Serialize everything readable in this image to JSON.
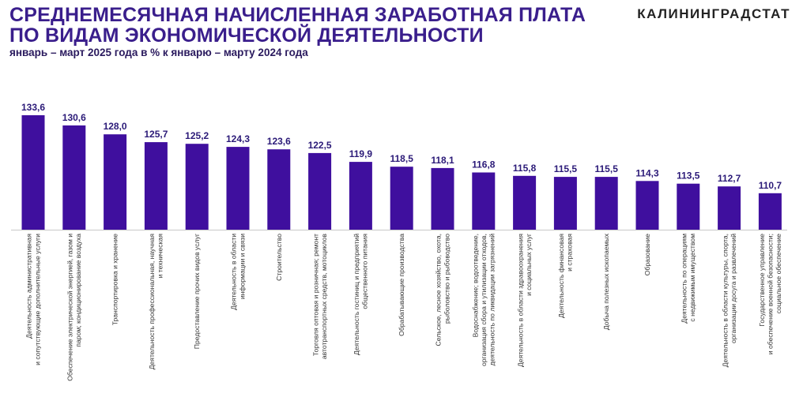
{
  "header": {
    "title": "СРЕДНЕМЕСЯЧНАЯ НАЧИСЛЕННАЯ ЗАРАБОТНАЯ ПЛАТА ПО ВИДАМ ЭКОНОМИЧЕСКОЙ ДЕЯТЕЛЬНОСТИ",
    "subtitle": "январь – март 2025 года в % к январю – марту 2024 года",
    "brand": "КАЛИНИНГРАДСТАТ"
  },
  "colors": {
    "bar": "#3f0f9e",
    "title": "#3a1e8c",
    "value_label": "#2b1a78"
  },
  "chart_data": {
    "type": "bar",
    "title": "СРЕДНЕМЕСЯЧНАЯ НАЧИСЛЕННАЯ ЗАРАБОТНАЯ ПЛАТА ПО ВИДАМ ЭКОНОМИЧЕСКОЙ ДЕЯТЕЛЬНОСТИ",
    "subtitle": "январь – март 2025 года в % к январю – марту 2024 года",
    "xlabel": "",
    "ylabel": "",
    "ylim": [
      100,
      134
    ],
    "grid": false,
    "categories": [
      [
        "Деятельность административная",
        "и сопутствующие дополнительные услуги"
      ],
      [
        "Обеспечение электрической энергией, газом и",
        "паром; кондиционирование воздуха"
      ],
      [
        "Транспортировка и хранение"
      ],
      [
        "Деятельность профессиональная, научная",
        "и техническая"
      ],
      [
        "Предоставление прочих видов услуг"
      ],
      [
        "Деятельность в области",
        "информации и связи"
      ],
      [
        "Строительство"
      ],
      [
        "Торговля оптовая и розничная; ремонт",
        "автотранспортных средств, мотоциклов"
      ],
      [
        "Деятельность гостиниц и предприятий",
        "общественного питания"
      ],
      [
        "Обрабатывающие производства"
      ],
      [
        "Сельское, лесное хозяйство, охота,",
        "рыболовство и рыбоводство"
      ],
      [
        "Водоснабжение; водоотведение,",
        "организация сбора и утилизации отходов,",
        "деятельность по ликвидации загрязнений"
      ],
      [
        "Деятельность  в области здравоохранения",
        "и социальных услуг"
      ],
      [
        "Деятельность финансовая",
        "и страховая"
      ],
      [
        "Добыча полезных ископаемых"
      ],
      [
        "Образование"
      ],
      [
        "Деятельность по операциям",
        "с недвижимым имуществом"
      ],
      [
        "Деятельность в области культуры, спорта,",
        "организации досуга и развлечений"
      ],
      [
        "Государственное управление",
        "и обеспечение военной безопасности;",
        "социальное обеспечение"
      ]
    ],
    "values": [
      133.6,
      130.6,
      128.0,
      125.7,
      125.2,
      124.3,
      123.6,
      122.5,
      119.9,
      118.5,
      118.1,
      116.8,
      115.8,
      115.5,
      115.5,
      114.3,
      113.5,
      112.7,
      110.7
    ],
    "value_labels": [
      "133,6",
      "130,6",
      "128,0",
      "125,7",
      "125,2",
      "124,3",
      "123,6",
      "122,5",
      "119,9",
      "118,5",
      "118,1",
      "116,8",
      "115,8",
      "115,5",
      "115,5",
      "114,3",
      "113,5",
      "112,7",
      "110,7"
    ]
  }
}
